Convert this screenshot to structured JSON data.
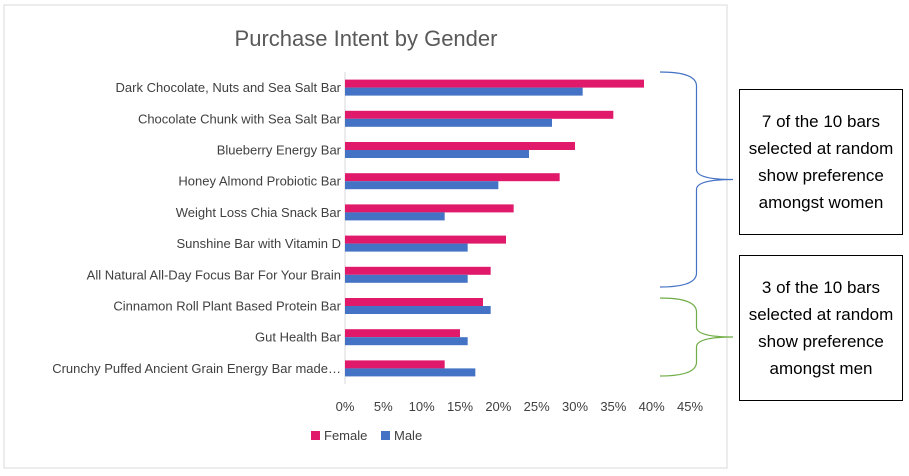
{
  "chart_data": {
    "type": "bar",
    "orientation": "horizontal",
    "title": "Purchase Intent by Gender",
    "categories": [
      "Dark Chocolate, Nuts and Sea Salt Bar",
      "Chocolate Chunk with Sea Salt Bar",
      "Blueberry Energy Bar",
      "Honey Almond Probiotic Bar",
      "Weight Loss Chia Snack Bar",
      "Sunshine Bar with Vitamin D",
      "All Natural All-Day Focus Bar For Your Brain",
      "Cinnamon Roll Plant Based Protein Bar",
      "Gut Health Bar",
      "Crunchy Puffed Ancient Grain Energy Bar made…"
    ],
    "series": [
      {
        "name": "Female",
        "color": "#e0196b",
        "values": [
          39,
          35,
          30,
          28,
          22,
          21,
          19,
          18,
          15,
          13
        ]
      },
      {
        "name": "Male",
        "color": "#4472c4",
        "values": [
          31,
          27,
          24,
          20,
          13,
          16,
          16,
          19,
          16,
          17
        ]
      }
    ],
    "xlim": [
      0,
      45
    ],
    "x_ticks": [
      "0%",
      "5%",
      "10%",
      "15%",
      "20%",
      "25%",
      "30%",
      "35%",
      "40%",
      "45%"
    ],
    "grid": false,
    "legend_position": "bottom"
  },
  "annotations": {
    "women": {
      "text": "7 of the 10 bars selected at random show preference amongst women",
      "brace_color": "#4472c4"
    },
    "men": {
      "text": "3 of the 10 bars selected at random show preference amongst men",
      "brace_color": "#70ad47"
    }
  }
}
